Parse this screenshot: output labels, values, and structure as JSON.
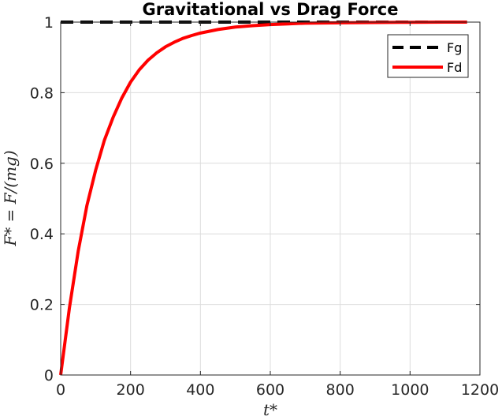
{
  "chart_data": {
    "type": "line",
    "title": "Gravitational vs Drag Force",
    "xlabel": "t*",
    "ylabel": "F* = F/(mg)",
    "xlim": [
      0,
      1200
    ],
    "ylim": [
      0,
      1
    ],
    "xticks": [
      0,
      200,
      400,
      600,
      800,
      1000,
      1200
    ],
    "yticks": [
      0,
      0.2,
      0.4,
      0.6,
      0.8,
      1
    ],
    "grid": true,
    "legend_position": "top-right",
    "series": [
      {
        "name": "Fg",
        "color": "#000000",
        "style": "dashed",
        "x": [
          0,
          1163
        ],
        "y": [
          1,
          1
        ]
      },
      {
        "name": "Fd",
        "color": "#ff0000",
        "style": "solid",
        "x": [
          0,
          25,
          50,
          75,
          100,
          125,
          150,
          175,
          200,
          225,
          250,
          275,
          300,
          325,
          350,
          375,
          400,
          450,
          500,
          550,
          600,
          650,
          700,
          800,
          900,
          1000,
          1100,
          1163
        ],
        "y": [
          0,
          0.19,
          0.35,
          0.48,
          0.58,
          0.665,
          0.73,
          0.785,
          0.83,
          0.865,
          0.892,
          0.913,
          0.93,
          0.943,
          0.954,
          0.962,
          0.969,
          0.979,
          0.986,
          0.99,
          0.993,
          0.995,
          0.997,
          0.998,
          0.999,
          0.9995,
          1.0,
          1.0
        ]
      }
    ]
  }
}
